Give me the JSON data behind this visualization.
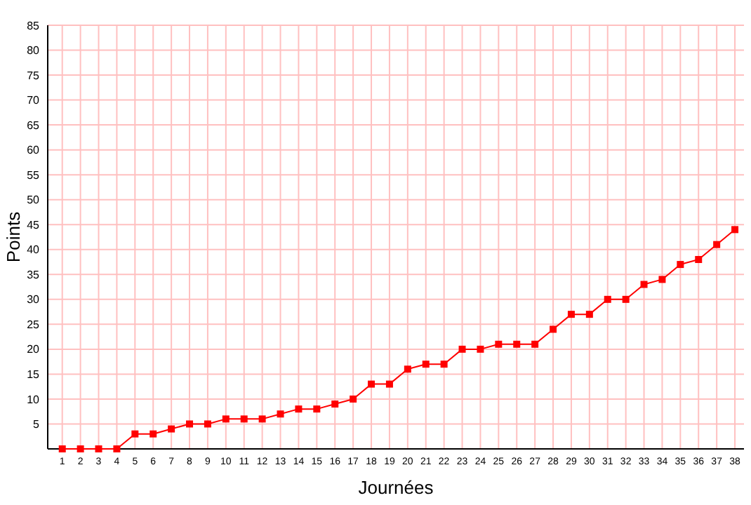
{
  "chart_data": {
    "type": "line",
    "xlabel": "Journées",
    "ylabel": "Points",
    "x": [
      1,
      2,
      3,
      4,
      5,
      6,
      7,
      8,
      9,
      10,
      11,
      12,
      13,
      14,
      15,
      16,
      17,
      18,
      19,
      20,
      21,
      22,
      23,
      24,
      25,
      26,
      27,
      28,
      29,
      30,
      31,
      32,
      33,
      34,
      35,
      36,
      37,
      38
    ],
    "series": [
      {
        "color": "#ff0000",
        "values": [
          0,
          0,
          0,
          0,
          3,
          3,
          4,
          5,
          5,
          6,
          6,
          6,
          7,
          8,
          8,
          9,
          10,
          13,
          13,
          16,
          17,
          17,
          20,
          20,
          21,
          21,
          21,
          24,
          27,
          27,
          30,
          30,
          33,
          34,
          37,
          38,
          41,
          44
        ]
      }
    ],
    "xlim": [
      0.2,
      38.5
    ],
    "xticks": [
      1,
      2,
      3,
      4,
      5,
      6,
      7,
      8,
      9,
      10,
      11,
      12,
      13,
      14,
      15,
      16,
      17,
      18,
      19,
      20,
      21,
      22,
      23,
      24,
      25,
      26,
      27,
      28,
      29,
      30,
      31,
      32,
      33,
      34,
      35,
      36,
      37,
      38
    ],
    "ylim": [
      0,
      85
    ],
    "yticks": [
      {
        "value": 0,
        "label": null
      },
      5,
      10,
      15,
      20,
      25,
      30,
      35,
      40,
      45,
      50,
      55,
      60,
      65,
      70,
      75,
      80,
      85
    ],
    "grid": true,
    "marker": "square",
    "line_style": "solid"
  }
}
